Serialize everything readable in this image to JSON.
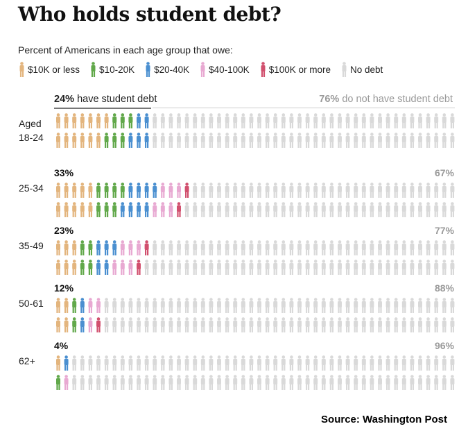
{
  "title": "Who holds student debt?",
  "subtitle": "Percent of Americans in each age group that owe:",
  "legend": [
    {
      "label": "$10K or less",
      "color": "#e3b57e"
    },
    {
      "label": "$10-20K",
      "color": "#61a84a"
    },
    {
      "label": "$20-40K",
      "color": "#4a8fd0"
    },
    {
      "label": "$40-100K",
      "color": "#e8a9d2"
    },
    {
      "label": "$100K or more",
      "color": "#d1506e"
    },
    {
      "label": "No debt",
      "color": "#d9d9d9"
    }
  ],
  "header": {
    "have_pct": "24%",
    "have_text": "have student debt",
    "not_pct": "76%",
    "not_text": "do not have student debt"
  },
  "chart_data": {
    "type": "pictogram",
    "figures_per_row": 50,
    "categories": [
      "$10K or less",
      "$10-20K",
      "$20-40K",
      "$40-100K",
      "$100K or more",
      "No debt"
    ],
    "groups": [
      {
        "age_prefix": "Aged",
        "age": "18-24",
        "have": "",
        "not": "",
        "rows": [
          [
            7,
            3,
            2,
            0,
            0
          ],
          [
            6,
            3,
            3,
            0,
            0
          ]
        ]
      },
      {
        "age_prefix": "",
        "age": "25-34",
        "have": "33%",
        "not": "67%",
        "rows": [
          [
            5,
            4,
            4,
            3,
            1
          ],
          [
            5,
            3,
            4,
            3,
            1
          ]
        ]
      },
      {
        "age_prefix": "",
        "age": "35-49",
        "have": "23%",
        "not": "77%",
        "rows": [
          [
            3,
            2,
            3,
            3,
            1
          ],
          [
            3,
            2,
            2,
            3,
            1
          ]
        ]
      },
      {
        "age_prefix": "",
        "age": "50-61",
        "have": "12%",
        "not": "88%",
        "rows": [
          [
            2,
            1,
            1,
            2,
            0
          ],
          [
            2,
            1,
            1,
            1,
            1
          ]
        ]
      },
      {
        "age_prefix": "",
        "age": "62+",
        "have": "4%",
        "not": "96%",
        "rows": [
          [
            1,
            0,
            1,
            0,
            0
          ],
          [
            0,
            1,
            0,
            1,
            0
          ]
        ]
      }
    ]
  },
  "source": "Source:  Washington Post"
}
